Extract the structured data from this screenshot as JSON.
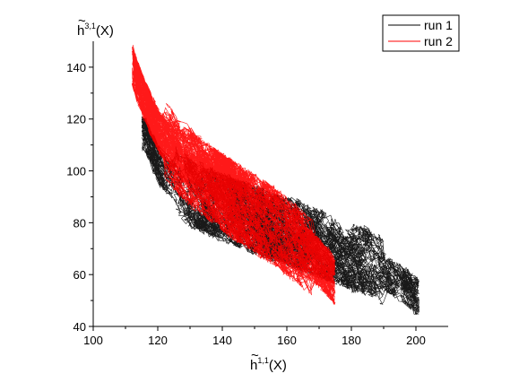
{
  "chart_data": {
    "type": "line",
    "title": "",
    "xlabel": {
      "base": "h",
      "sup": "1,1",
      "suffix": "(X)"
    },
    "ylabel": {
      "base": "h",
      "sup": "3,1",
      "suffix": "(X)"
    },
    "xlim": [
      100,
      210
    ],
    "ylim": [
      40,
      150
    ],
    "xticks": [
      100,
      120,
      140,
      160,
      180,
      200
    ],
    "yticks": [
      40,
      60,
      80,
      100,
      120,
      140
    ],
    "grid": false,
    "legend_position": "top-right",
    "series": [
      {
        "name": "run 1",
        "color": "#000000",
        "x_range": [
          115,
          201
        ],
        "y_range": [
          48,
          118
        ],
        "x": [
          116,
          118,
          121,
          125,
          130,
          136,
          142,
          148,
          154,
          160,
          166,
          172,
          178,
          184,
          190,
          195,
          200
        ],
        "y": [
          114,
          108,
          101,
          96,
          92,
          88,
          85,
          82,
          79,
          77,
          74,
          71,
          68,
          65,
          61,
          57,
          52
        ]
      },
      {
        "name": "run 2",
        "color": "#ff0000",
        "x_range": [
          112,
          175
        ],
        "y_range": [
          50,
          142
        ],
        "x": [
          112,
          114,
          117,
          120,
          124,
          128,
          133,
          138,
          143,
          148,
          153,
          158,
          163,
          168,
          172,
          175
        ],
        "y": [
          141,
          133,
          124,
          116,
          109,
          104,
          98,
          93,
          89,
          85,
          81,
          77,
          72,
          67,
          62,
          57
        ]
      }
    ]
  }
}
